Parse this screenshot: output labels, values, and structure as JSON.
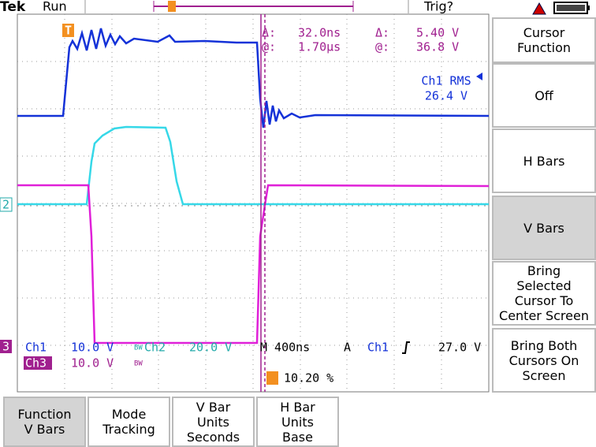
{
  "header": {
    "brand": "Tek",
    "status": "Run",
    "trigger_status": "Trig?"
  },
  "cursor_readout": {
    "delta_time_label": "Δ:",
    "delta_time": "32.0ns",
    "delta_volt_label": "Δ:",
    "delta_volt": "5.40 V",
    "at_time_label": "@:",
    "at_time": "1.70µs",
    "at_volt_label": "@:",
    "at_volt": "36.8 V"
  },
  "measurement": {
    "label": "Ch1 RMS",
    "value": "26.4 V"
  },
  "markers": {
    "trigger": "T",
    "ch2": "2",
    "ch3": "3"
  },
  "channels": [
    {
      "name": "Ch1",
      "scale": "10.0 V"
    },
    {
      "name": "Ch2",
      "scale": "20.0 V",
      "bw": "BW"
    },
    {
      "name": "Ch3",
      "scale": "10.0 V",
      "bw": "BW"
    }
  ],
  "timebase": "M 400ns",
  "trigger": {
    "mode": "A",
    "source": "Ch1",
    "level": "27.0 V",
    "position": "10.20 %"
  },
  "side_menu": {
    "title": [
      "Cursor",
      "Function"
    ],
    "buttons": [
      [
        "Off"
      ],
      [
        "H Bars"
      ],
      [
        "V Bars"
      ],
      [
        "Bring",
        "Selected",
        "Cursor To",
        "Center Screen"
      ],
      [
        "Bring Both",
        "Cursors On",
        "Screen"
      ]
    ]
  },
  "bottom_menu": [
    [
      "Function",
      "V Bars"
    ],
    [
      "Mode",
      "Tracking"
    ],
    [
      "V Bar",
      "Units",
      "Seconds"
    ],
    [
      "H Bar",
      "Units",
      "Base"
    ]
  ]
}
